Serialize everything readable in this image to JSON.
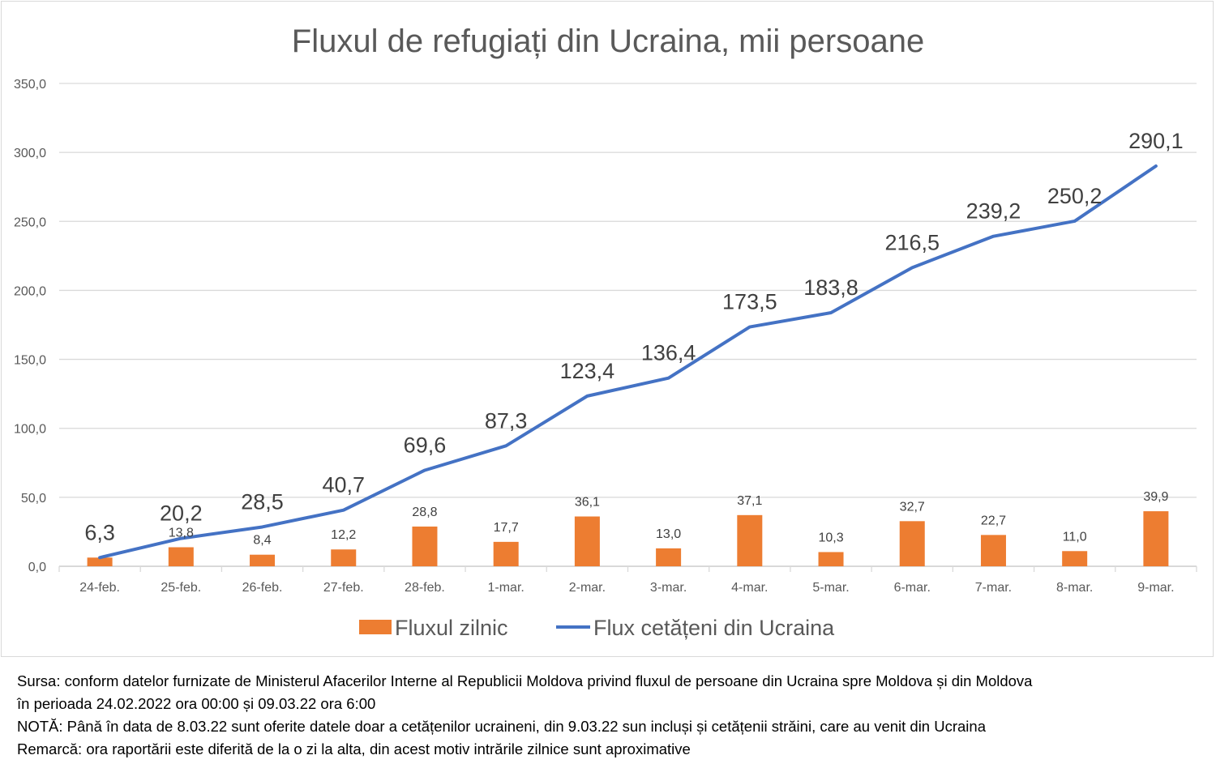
{
  "chart_data": {
    "type": "bar+line",
    "title": "Fluxul de refugiați din Ucraina, mii persoane",
    "categories": [
      "24-feb.",
      "25-feb.",
      "26-feb.",
      "27-feb.",
      "28-feb.",
      "1-mar.",
      "2-mar.",
      "3-mar.",
      "4-mar.",
      "5-mar.",
      "6-mar.",
      "7-mar.",
      "8-mar.",
      "9-mar."
    ],
    "series": [
      {
        "name": "Fluxul zilnic",
        "type": "bar",
        "color": "#ED7D31",
        "values": [
          6.3,
          13.8,
          8.4,
          12.2,
          28.8,
          17.7,
          36.1,
          13.0,
          37.1,
          10.3,
          32.7,
          22.7,
          11.0,
          39.9
        ],
        "labels": [
          "",
          "13,8",
          "8,4",
          "12,2",
          "28,8",
          "17,7",
          "36,1",
          "13,0",
          "37,1",
          "10,3",
          "32,7",
          "22,7",
          "11,0",
          "39,9"
        ]
      },
      {
        "name": "Flux cetățeni din Ucraina",
        "type": "line",
        "color": "#4472C4",
        "values": [
          6.3,
          20.2,
          28.5,
          40.7,
          69.6,
          87.3,
          123.4,
          136.4,
          173.5,
          183.8,
          216.5,
          239.2,
          250.2,
          290.1
        ],
        "labels": [
          "6,3",
          "20,2",
          "28,5",
          "40,7",
          "69,6",
          "87,3",
          "123,4",
          "136,4",
          "173,5",
          "183,8",
          "216,5",
          "239,2",
          "250,2",
          "290,1"
        ]
      }
    ],
    "yticks": [
      "0,0",
      "50,0",
      "100,0",
      "150,0",
      "200,0",
      "250,0",
      "300,0",
      "350,0"
    ],
    "ylim": [
      0,
      350
    ],
    "grid": true,
    "legend": "bottom"
  },
  "footer": {
    "line1": "Sursa: conform datelor furnizate de Ministerul Afacerilor Interne al Republicii Moldova privind fluxul de persoane din Ucraina spre Moldova și din Moldova",
    "line2": "în perioada 24.02.2022 ora 00:00 și 09.03.22 ora 6:00",
    "line3": "NOTĂ: Până în data de 8.03.22 sunt oferite datele doar a cetățenilor ucraineni, din 9.03.22 sun incluși și cetățenii străini, care au venit din Ucraina",
    "line4": "Remarcă: ora raportării este diferită de la o zi la alta, din acest motiv intrările zilnice sunt aproximative"
  }
}
